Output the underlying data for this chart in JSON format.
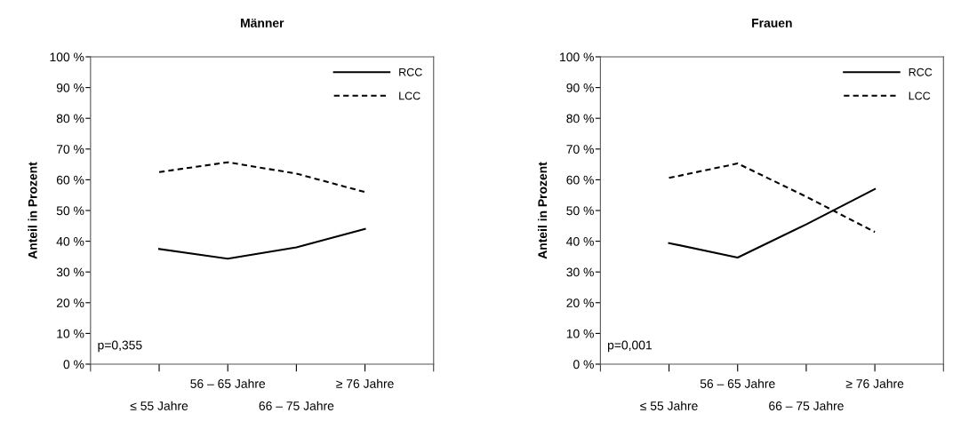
{
  "chart_data": [
    {
      "type": "line",
      "title": "Männer",
      "ylabel": "Anteil in Prozent",
      "categories": [
        "≤ 55 Jahre",
        "56 – 65 Jahre",
        "66 – 75 Jahre",
        "≥ 76 Jahre"
      ],
      "series": [
        {
          "name": "RCC",
          "color": "#000000",
          "line_style": "solid",
          "values": [
            37.5,
            34.3,
            38,
            44
          ]
        },
        {
          "name": "LCC",
          "color": "#000000",
          "line_style": "dashed",
          "values": [
            62.5,
            65.7,
            62,
            56
          ]
        }
      ],
      "ylim": [
        0,
        100
      ],
      "yticks": [
        {
          "value": 0,
          "label": "0 %"
        },
        {
          "value": 10,
          "label": "10 %"
        },
        {
          "value": 20,
          "label": "20 %"
        },
        {
          "value": 30,
          "label": "30 %"
        },
        {
          "value": 40,
          "label": "40 %"
        },
        {
          "value": 50,
          "label": "50 %"
        },
        {
          "value": 60,
          "label": "60 %"
        },
        {
          "value": 70,
          "label": "70 %"
        },
        {
          "value": 80,
          "label": "80 %"
        },
        {
          "value": 90,
          "label": "90 %"
        },
        {
          "value": 100,
          "label": "100 %"
        }
      ],
      "grid": false,
      "legend": "top right",
      "marker": "none",
      "annotations": [
        "p=0,355"
      ]
    },
    {
      "type": "line",
      "title": "Frauen",
      "ylabel": "Anteil in Prozent",
      "categories": [
        "≤ 55 Jahre",
        "56 – 65 Jahre",
        "66 – 75 Jahre",
        "≥ 76 Jahre"
      ],
      "series": [
        {
          "name": "RCC",
          "color": "#000000",
          "line_style": "solid",
          "values": [
            39.4,
            34.7,
            45.5,
            57
          ]
        },
        {
          "name": "LCC",
          "color": "#000000",
          "line_style": "dashed",
          "values": [
            60.6,
            65.3,
            54.5,
            43
          ]
        }
      ],
      "ylim": [
        0,
        100
      ],
      "yticks": [
        {
          "value": 0,
          "label": "0 %"
        },
        {
          "value": 10,
          "label": "10 %"
        },
        {
          "value": 20,
          "label": "20 %"
        },
        {
          "value": 30,
          "label": "30 %"
        },
        {
          "value": 40,
          "label": "40 %"
        },
        {
          "value": 50,
          "label": "50 %"
        },
        {
          "value": 60,
          "label": "60 %"
        },
        {
          "value": 70,
          "label": "70 %"
        },
        {
          "value": 80,
          "label": "80 %"
        },
        {
          "value": 90,
          "label": "90 %"
        },
        {
          "value": 100,
          "label": "100 %"
        }
      ],
      "grid": false,
      "legend": "top right",
      "marker": "none",
      "annotations": [
        "p=0,001"
      ]
    }
  ]
}
